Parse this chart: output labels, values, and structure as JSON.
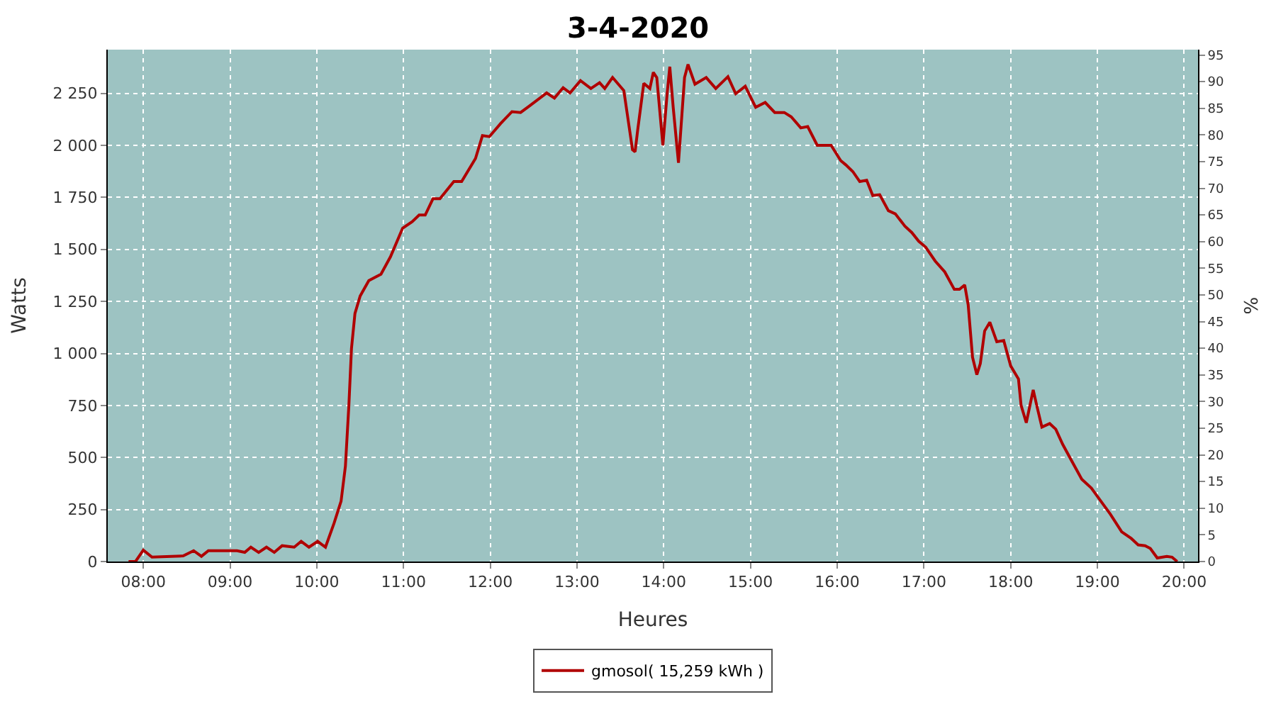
{
  "chart_data": {
    "type": "line",
    "title": "3-4-2020",
    "xlabel": "Heures",
    "ylabel": "Watts",
    "y2label": "%",
    "x": [
      7.83,
      7.91,
      8.0,
      8.1,
      8.46,
      8.58,
      8.67,
      8.75,
      9.08,
      9.17,
      9.24,
      9.33,
      9.42,
      9.51,
      9.6,
      9.74,
      9.82,
      9.91,
      10.01,
      10.1,
      10.2,
      10.28,
      10.33,
      10.37,
      10.4,
      10.44,
      10.5,
      10.6,
      10.74,
      10.85,
      10.99,
      11.1,
      11.18,
      11.25,
      11.34,
      11.42,
      11.58,
      11.67,
      11.83,
      11.91,
      11.99,
      12.12,
      12.25,
      12.35,
      12.45,
      12.65,
      12.74,
      12.84,
      12.92,
      13.04,
      13.16,
      13.26,
      13.32,
      13.41,
      13.54,
      13.64,
      13.67,
      13.7,
      13.77,
      13.84,
      13.88,
      13.92,
      13.99,
      14.04,
      14.07,
      14.11,
      14.17,
      14.24,
      14.28,
      14.36,
      14.49,
      14.6,
      14.74,
      14.83,
      14.94,
      15.06,
      15.17,
      15.28,
      15.39,
      15.47,
      15.58,
      15.66,
      15.77,
      15.93,
      16.04,
      16.1,
      16.18,
      16.26,
      16.34,
      16.41,
      16.49,
      16.59,
      16.67,
      16.78,
      16.86,
      16.94,
      17.02,
      17.13,
      17.24,
      17.35,
      17.41,
      17.47,
      17.51,
      17.56,
      17.61,
      17.65,
      17.7,
      17.76,
      17.84,
      17.92,
      18.0,
      18.09,
      18.12,
      18.18,
      18.26,
      18.3,
      18.36,
      18.45,
      18.52,
      18.6,
      18.71,
      18.82,
      18.93,
      19.04,
      19.15,
      19.28,
      19.39,
      19.47,
      19.55,
      19.61,
      19.69,
      19.8,
      19.86,
      19.92
    ],
    "series": [
      {
        "name": "gmosol( 15,259 kWh )",
        "color": "#b00000",
        "values": [
          0,
          0,
          55,
          21,
          27,
          52,
          25,
          52,
          52,
          44,
          69,
          44,
          69,
          44,
          76,
          69,
          97,
          69,
          97,
          69,
          185,
          290,
          458,
          751,
          1024,
          1192,
          1276,
          1350,
          1381,
          1465,
          1602,
          1633,
          1665,
          1665,
          1744,
          1744,
          1826,
          1826,
          1937,
          2047,
          2042,
          2105,
          2162,
          2158,
          2189,
          2252,
          2227,
          2277,
          2252,
          2311,
          2273,
          2301,
          2273,
          2326,
          2263,
          1979,
          1969,
          2074,
          2298,
          2273,
          2351,
          2326,
          2000,
          2252,
          2378,
          2179,
          1916,
          2326,
          2389,
          2294,
          2326,
          2273,
          2330,
          2248,
          2284,
          2183,
          2206,
          2158,
          2158,
          2137,
          2084,
          2090,
          2000,
          2000,
          1927,
          1906,
          1874,
          1826,
          1832,
          1759,
          1763,
          1686,
          1671,
          1612,
          1581,
          1539,
          1511,
          1444,
          1392,
          1308,
          1308,
          1329,
          1234,
          982,
          898,
          951,
          1108,
          1150,
          1056,
          1062,
          940,
          877,
          751,
          667,
          825,
          751,
          646,
          663,
          636,
          563,
          479,
          395,
          353,
          290,
          227,
          143,
          111,
          80,
          76,
          63,
          17,
          25,
          21,
          0
        ]
      }
    ],
    "xlim": [
      7.59,
      20.16
    ],
    "xticks": [
      {
        "value": 8,
        "label": "08:00"
      },
      {
        "value": 9,
        "label": "09:00"
      },
      {
        "value": 10,
        "label": "10:00"
      },
      {
        "value": 11,
        "label": "11:00"
      },
      {
        "value": 12,
        "label": "12:00"
      },
      {
        "value": 13,
        "label": "13:00"
      },
      {
        "value": 14,
        "label": "14:00"
      },
      {
        "value": 15,
        "label": "15:00"
      },
      {
        "value": 16,
        "label": "16:00"
      },
      {
        "value": 17,
        "label": "17:00"
      },
      {
        "value": 18,
        "label": "18:00"
      },
      {
        "value": 19,
        "label": "19:00"
      },
      {
        "value": 20,
        "label": "20:00"
      }
    ],
    "ylim": [
      0,
      2460
    ],
    "yticks": [
      0,
      250,
      500,
      750,
      {
        "value": 1000,
        "label": "1 000"
      },
      {
        "value": 1250,
        "label": "1 250"
      },
      {
        "value": 1500,
        "label": "1 500"
      },
      {
        "value": 1750,
        "label": "1 750"
      },
      {
        "value": 2000,
        "label": "2 000"
      },
      {
        "value": 2250,
        "label": "2 250"
      }
    ],
    "y2lim": [
      0,
      96
    ],
    "y2ticks": [
      0,
      5,
      10,
      15,
      20,
      25,
      30,
      35,
      40,
      45,
      50,
      55,
      60,
      65,
      70,
      75,
      80,
      85,
      90,
      95
    ],
    "grid": true,
    "legend": "bottom",
    "marker": "none",
    "line_style": "solid"
  }
}
